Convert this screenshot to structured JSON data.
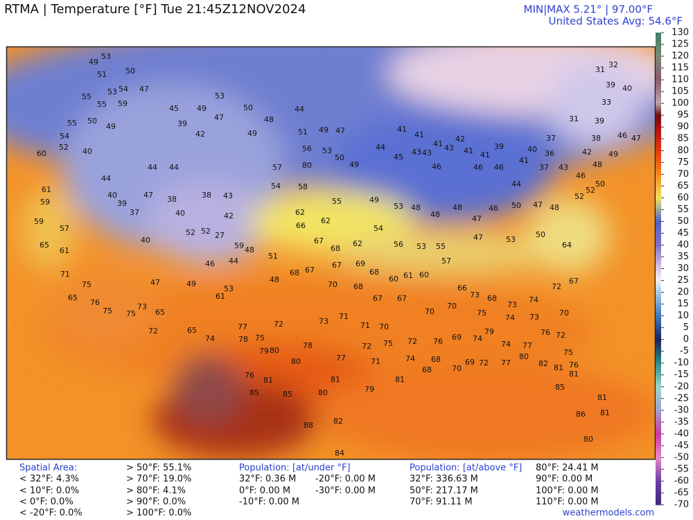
{
  "header": {
    "title": "RTMA | Temperature [°F]  Tue 21:45Z12NOV2024",
    "minmax": "MIN|MAX 5.21° | 97.00°F",
    "average": "United States Avg: 54.6°F"
  },
  "colorbar": {
    "ticks": [
      130,
      125,
      120,
      115,
      110,
      105,
      100,
      95,
      90,
      85,
      80,
      75,
      70,
      65,
      60,
      55,
      50,
      45,
      40,
      35,
      30,
      25,
      20,
      15,
      10,
      5,
      0,
      -5,
      -10,
      -15,
      -20,
      -25,
      -30,
      -35,
      -40,
      -45,
      -50,
      -55,
      -60,
      -65,
      -70
    ],
    "stops": [
      {
        "value": 130,
        "color": "#3d7f66"
      },
      {
        "value": 120,
        "color": "#7a8a78"
      },
      {
        "value": 110,
        "color": "#8a5870"
      },
      {
        "value": 100,
        "color": "#b8a8a8"
      },
      {
        "value": 95,
        "color": "#6a1010"
      },
      {
        "value": 90,
        "color": "#a81212"
      },
      {
        "value": 80,
        "color": "#e23810"
      },
      {
        "value": 70,
        "color": "#f28a22"
      },
      {
        "value": 60,
        "color": "#f2e060"
      },
      {
        "value": 55,
        "color": "#a0a8a0"
      },
      {
        "value": 50,
        "color": "#4e62c8"
      },
      {
        "value": 40,
        "color": "#8070c8"
      },
      {
        "value": 30,
        "color": "#d8c8e8"
      },
      {
        "value": 25,
        "color": "#f4f0f4"
      },
      {
        "value": 20,
        "color": "#a8c8e8"
      },
      {
        "value": 10,
        "color": "#3a7ac0"
      },
      {
        "value": 0,
        "color": "#1a2060"
      },
      {
        "value": -10,
        "color": "#2a8a8a"
      },
      {
        "value": -20,
        "color": "#9ad8c8"
      },
      {
        "value": -30,
        "color": "#a0a0d0"
      },
      {
        "value": -40,
        "color": "#c83aa8"
      },
      {
        "value": -50,
        "color": "#e888c8"
      },
      {
        "value": -60,
        "color": "#6a40a8"
      },
      {
        "value": -70,
        "color": "#402878"
      }
    ]
  },
  "map": {
    "labels": [
      53,
      49,
      51,
      50,
      53,
      54,
      47,
      59,
      55,
      55,
      55,
      50,
      49,
      54,
      52,
      60,
      40,
      44,
      44,
      44,
      42,
      39,
      49,
      45,
      53,
      47,
      50,
      49,
      48,
      44,
      51,
      49,
      47,
      56,
      53,
      50,
      49,
      44,
      45,
      43,
      46,
      46,
      46,
      44,
      37,
      43,
      46,
      48,
      49,
      57,
      80,
      54,
      58,
      55,
      62,
      62,
      66,
      67,
      68,
      62,
      54,
      56,
      53,
      55,
      47,
      53,
      50,
      64,
      59,
      27,
      52,
      48,
      51,
      48,
      68,
      67,
      67,
      69,
      68,
      60,
      61,
      60,
      57,
      66,
      73,
      68,
      73,
      74,
      72,
      67,
      70,
      68,
      67,
      67,
      70,
      70,
      75,
      74,
      73,
      70,
      73,
      65,
      75,
      75,
      72,
      65,
      74,
      77,
      72,
      73,
      71,
      71,
      70,
      72,
      76,
      69,
      74,
      79,
      74,
      77,
      76,
      72,
      75,
      76,
      81,
      82,
      80,
      78,
      75,
      79,
      80,
      78,
      80,
      77,
      72,
      71,
      75,
      74,
      68,
      70,
      69,
      72,
      77,
      76,
      81,
      81,
      81,
      68,
      85,
      85,
      80,
      79,
      85,
      81,
      81,
      86,
      81,
      80,
      88,
      82,
      84,
      41,
      41,
      43,
      41,
      43,
      42,
      41,
      41,
      39,
      41,
      40,
      37,
      31,
      36,
      42,
      38,
      39,
      33,
      39,
      31,
      32,
      40,
      46,
      47,
      49,
      53,
      48,
      48,
      48,
      47,
      46,
      50,
      47,
      48,
      52,
      52,
      50,
      61,
      59,
      59,
      57,
      61,
      65,
      71,
      75,
      76,
      65,
      40,
      39,
      37,
      47,
      38,
      38,
      43,
      42,
      40,
      52,
      40,
      47,
      49,
      46,
      44,
      53,
      61
    ]
  },
  "footer": {
    "spatial_title": "Spatial Area:",
    "spatial_below": [
      "< 32°F: 4.3%",
      "< 10°F: 0.0%",
      "< 0°F: 0.0%",
      "< -20°F: 0.0%"
    ],
    "spatial_above": [
      "> 50°F: 55.1%",
      "> 70°F: 19.0%",
      "> 80°F: 4.1%",
      "> 90°F: 0.0%",
      "> 100°F: 0.0%"
    ],
    "pop_under_title": "Population: [at/under °F]",
    "pop_under_a": [
      "32°F: 0.36 M",
      "0°F: 0.00 M",
      "-10°F: 0.00 M"
    ],
    "pop_under_b": [
      "-20°F: 0.00 M",
      "-30°F: 0.00 M"
    ],
    "pop_above_title": "Population: [at/above °F]",
    "pop_above_a": [
      "32°F: 336.63 M",
      "50°F: 217.17 M",
      "70°F: 91.11 M"
    ],
    "pop_above_b": [
      "80°F: 24.41 M",
      "90°F: 0.00 M",
      "100°F: 0.00 M",
      "110°F: 0.00 M"
    ],
    "website": "weathermodels.com"
  }
}
